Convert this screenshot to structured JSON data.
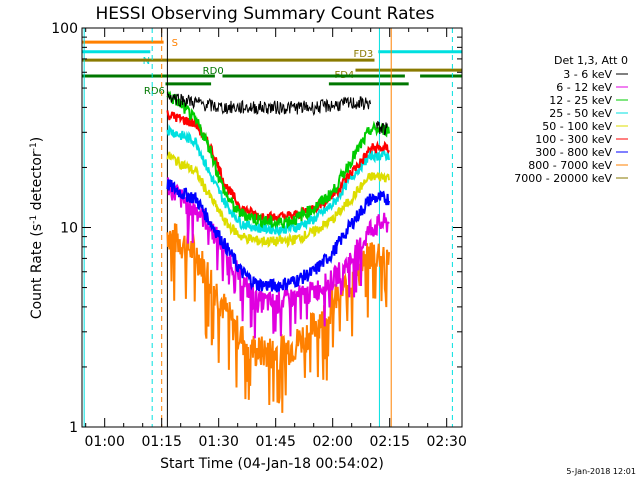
{
  "chart_data": {
    "type": "line",
    "title": "HESSI Observing Summary Count Rates",
    "xlabel": "Start Time (04-Jan-18 00:54:02)",
    "ylabel_main": "Count Rate (s",
    "ylabel_sup1": "-1",
    "ylabel_mid": " detector",
    "ylabel_sup2": "-1",
    "ylabel_end": ")",
    "yscale": "log",
    "xlim": [
      54.03,
      154.03
    ],
    "ylim": [
      1,
      100
    ],
    "x_ticks": [
      {
        "label": "01:00",
        "v": 60
      },
      {
        "label": "01:15",
        "v": 75
      },
      {
        "label": "01:30",
        "v": 90
      },
      {
        "label": "01:45",
        "v": 105
      },
      {
        "label": "02:00",
        "v": 120
      },
      {
        "label": "02:15",
        "v": 135
      },
      {
        "label": "02:30",
        "v": 150
      }
    ],
    "y_ticks": [
      {
        "label": "1",
        "v": 1
      },
      {
        "label": "10",
        "v": 10
      },
      {
        "label": "100",
        "v": 100
      }
    ],
    "legend_title": "Det 1,3, Att 0",
    "legend_placement": "right, outside plot",
    "series": [
      {
        "name": "3 - 6 keV",
        "color": "#000000",
        "values_start": [
          [
            76.5,
            46
          ],
          [
            80,
            44
          ],
          [
            85,
            42
          ],
          [
            90,
            40
          ],
          [
            95,
            40
          ],
          [
            100,
            40
          ],
          [
            105,
            40
          ],
          [
            110,
            40
          ],
          [
            115,
            40
          ],
          [
            120,
            41
          ],
          [
            125,
            42
          ],
          [
            130,
            42
          ]
        ],
        "values_end": [
          [
            131.5,
            32
          ],
          [
            134.5,
            31
          ]
        ]
      },
      {
        "name": "6 - 12 keV",
        "color": "#e000e0",
        "envelope": [
          [
            76.5,
            16.5
          ],
          [
            81,
            13.5
          ],
          [
            85,
            12
          ],
          [
            88,
            10
          ],
          [
            92,
            7.5
          ],
          [
            96,
            5.5
          ],
          [
            100,
            4.3
          ],
          [
            105,
            4.2
          ],
          [
            110,
            4.5
          ],
          [
            115,
            4.8
          ],
          [
            120,
            5.5
          ],
          [
            125,
            7
          ],
          [
            128,
            8.5
          ],
          [
            130,
            10
          ],
          [
            133,
            10.5
          ],
          [
            135,
            10.5
          ]
        ]
      },
      {
        "name": "12 - 25 keV",
        "color": "#00cc00",
        "envelope": [
          [
            76.5,
            46
          ],
          [
            79,
            43
          ],
          [
            82,
            38
          ],
          [
            85,
            32
          ],
          [
            88,
            24
          ],
          [
            90,
            18
          ],
          [
            92,
            14.5
          ],
          [
            95,
            12
          ],
          [
            100,
            11
          ],
          [
            105,
            10.5
          ],
          [
            110,
            11
          ],
          [
            115,
            12.5
          ],
          [
            120,
            15
          ],
          [
            125,
            22
          ],
          [
            128,
            27
          ],
          [
            130,
            31
          ],
          [
            133,
            31
          ],
          [
            135,
            31
          ]
        ]
      },
      {
        "name": "25 - 50 keV",
        "color": "#00e0e0",
        "envelope": [
          [
            76.5,
            31
          ],
          [
            80,
            29
          ],
          [
            84,
            27
          ],
          [
            88,
            18
          ],
          [
            92,
            13
          ],
          [
            96,
            10.5
          ],
          [
            100,
            10
          ],
          [
            105,
            9.8
          ],
          [
            110,
            10
          ],
          [
            115,
            11
          ],
          [
            120,
            13
          ],
          [
            125,
            18
          ],
          [
            128,
            21
          ],
          [
            130,
            23
          ],
          [
            133,
            23
          ],
          [
            135,
            23
          ]
        ]
      },
      {
        "name": "50 - 100 keV",
        "color": "#dddd00",
        "envelope": [
          [
            76.5,
            23
          ],
          [
            80,
            21
          ],
          [
            84,
            19
          ],
          [
            88,
            14
          ],
          [
            92,
            10.5
          ],
          [
            96,
            9
          ],
          [
            100,
            8.6
          ],
          [
            105,
            8.5
          ],
          [
            110,
            8.7
          ],
          [
            115,
            9.5
          ],
          [
            120,
            11
          ],
          [
            125,
            14
          ],
          [
            128,
            16.5
          ],
          [
            130,
            18
          ],
          [
            133,
            18
          ],
          [
            135,
            18
          ]
        ]
      },
      {
        "name": "100 - 300 keV",
        "color": "#ff0000",
        "envelope": [
          [
            76.5,
            37
          ],
          [
            80,
            35
          ],
          [
            84,
            33
          ],
          [
            88,
            25
          ],
          [
            92,
            16
          ],
          [
            96,
            12.5
          ],
          [
            100,
            11.5
          ],
          [
            105,
            11.2
          ],
          [
            110,
            11.5
          ],
          [
            115,
            12.5
          ],
          [
            120,
            14.5
          ],
          [
            125,
            19
          ],
          [
            128,
            22
          ],
          [
            130,
            25
          ],
          [
            133,
            25
          ],
          [
            135,
            25
          ]
        ]
      },
      {
        "name": "300 - 800 keV",
        "color": "#0000ff",
        "envelope": [
          [
            76.5,
            16.5
          ],
          [
            80,
            15
          ],
          [
            84,
            14
          ],
          [
            88,
            10.5
          ],
          [
            92,
            8
          ],
          [
            96,
            6
          ],
          [
            100,
            5.2
          ],
          [
            105,
            5.1
          ],
          [
            110,
            5.4
          ],
          [
            115,
            6
          ],
          [
            120,
            7.5
          ],
          [
            125,
            10.5
          ],
          [
            128,
            12.5
          ],
          [
            130,
            14
          ],
          [
            133,
            14
          ],
          [
            135,
            14
          ]
        ]
      },
      {
        "name": "800 - 7000 keV",
        "color": "#ff8000",
        "envelope": [
          [
            76.5,
            9.5
          ],
          [
            80,
            8.5
          ],
          [
            84,
            7.5
          ],
          [
            88,
            5.5
          ],
          [
            92,
            3.8
          ],
          [
            96,
            2.8
          ],
          [
            100,
            2.4
          ],
          [
            105,
            2.4
          ],
          [
            110,
            2.6
          ],
          [
            115,
            3.2
          ],
          [
            120,
            4.2
          ],
          [
            125,
            5.5
          ],
          [
            128,
            6.5
          ],
          [
            130,
            7.5
          ],
          [
            133,
            7.5
          ],
          [
            135,
            7.5
          ]
        ]
      },
      {
        "name": "7000 - 20000 keV",
        "color": "#8a7a00",
        "envelope": []
      }
    ],
    "bars": [
      {
        "label": "S",
        "color": "#ff8000",
        "y": 85,
        "segments": [
          [
            54.03,
            75.5
          ]
        ]
      },
      {
        "label": "N",
        "color": "#00e0e0",
        "y": 76,
        "segments": [
          [
            54.03,
            72
          ],
          [
            132,
            154
          ]
        ]
      },
      {
        "label": "FD3",
        "color": "#8a7a00",
        "y": 69,
        "segments": [
          [
            54.03,
            131
          ]
        ]
      },
      {
        "label": "FD4",
        "color": "#8a7a00",
        "y": 61.5,
        "segments": [
          [
            126,
            154
          ]
        ]
      },
      {
        "label": "RD0",
        "color": "#007700",
        "y": 57.5,
        "segments": [
          [
            54.03,
            89
          ],
          [
            91,
            139
          ],
          [
            143,
            154
          ]
        ]
      },
      {
        "label": "RD6",
        "color": "#007700",
        "y": 52.5,
        "segments": [
          [
            76,
            88
          ],
          [
            119,
            140
          ]
        ]
      }
    ],
    "vlines": [
      {
        "x": 54.6,
        "color": "#00e0e0",
        "style": "solid"
      },
      {
        "x": 72.5,
        "color": "#00e0e0",
        "style": "dashed"
      },
      {
        "x": 75,
        "color": "#ff8000",
        "style": "dashed"
      },
      {
        "x": 76.5,
        "color": "#000000",
        "style": "solid"
      },
      {
        "x": 132.3,
        "color": "#00e0e0",
        "style": "solid"
      },
      {
        "x": 135.4,
        "color": "#ff8000",
        "style": "solid"
      },
      {
        "x": 151.5,
        "color": "#00e0e0",
        "style": "dashed"
      }
    ]
  },
  "footer": {
    "timestamp": "5-Jan-2018 12:01"
  }
}
